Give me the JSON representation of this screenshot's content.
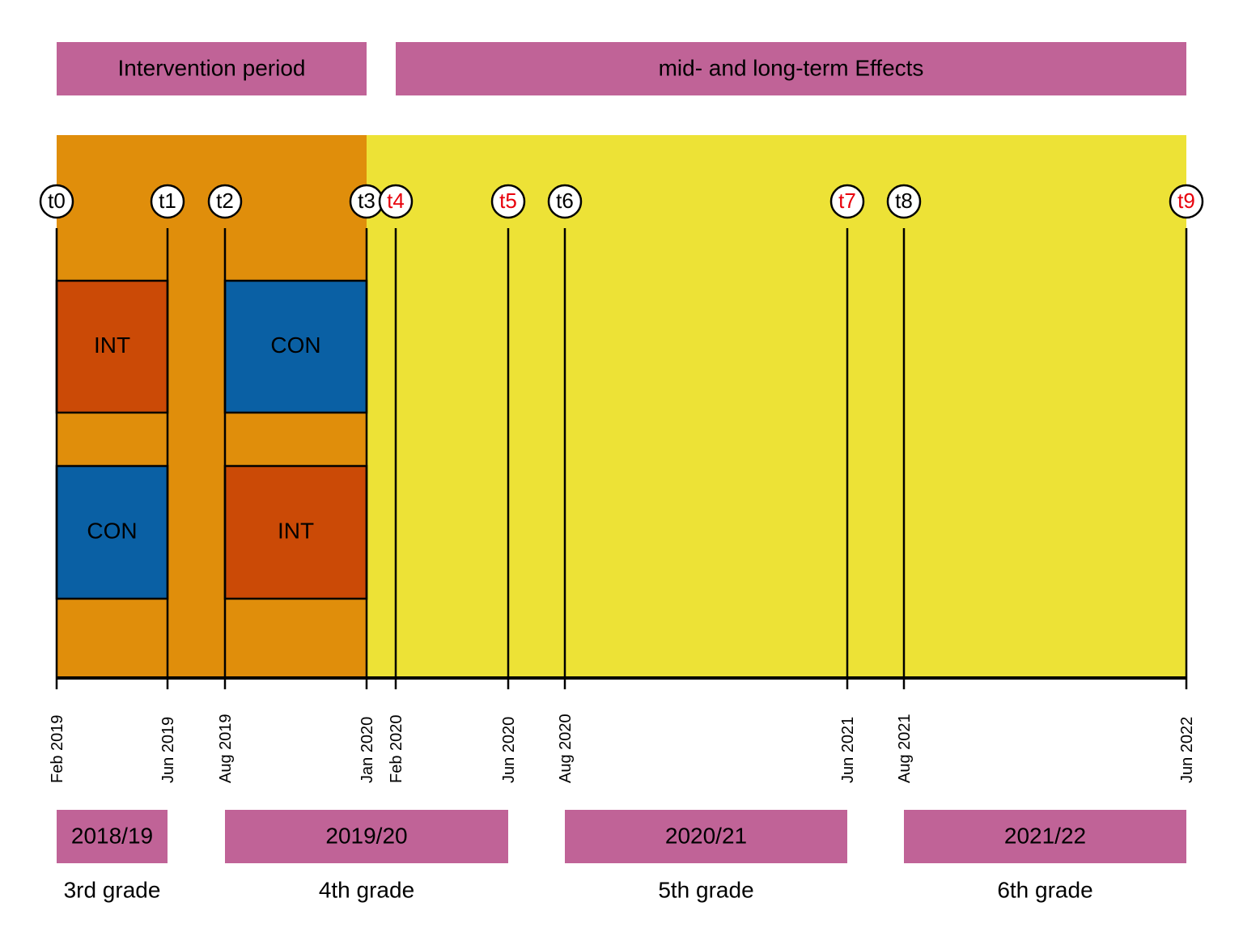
{
  "colors": {
    "period_banner": "#c06397",
    "intervention_bg": "#e08e0b",
    "effects_bg": "#ede236",
    "int_box": "#cb4a06",
    "con_box": "#0a60a4",
    "red_label": "#e8000b",
    "black": "#000000",
    "white": "#ffffff"
  },
  "header": {
    "intervention_period": "Intervention period",
    "effects_period": "mid- and long-term Effects"
  },
  "timepoints": [
    {
      "label": "t0",
      "date": "Feb 2019",
      "red": false
    },
    {
      "label": "t1",
      "date": "Jun 2019",
      "red": false
    },
    {
      "label": "t2",
      "date": "Aug 2019",
      "red": false
    },
    {
      "label": "t3",
      "date": "Jan 2020",
      "red": false
    },
    {
      "label": "t4",
      "date": "Feb 2020",
      "red": true
    },
    {
      "label": "t5",
      "date": "Jun 2020",
      "red": true
    },
    {
      "label": "t6",
      "date": "Aug 2020",
      "red": false
    },
    {
      "label": "t7",
      "date": "Jun 2021",
      "red": true
    },
    {
      "label": "t8",
      "date": "Aug 2021",
      "red": false
    },
    {
      "label": "t9",
      "date": "Jun 2022",
      "red": true
    }
  ],
  "groups": [
    {
      "label": "INT",
      "kind": "int",
      "from": "t0",
      "to": "t1",
      "row": "upper"
    },
    {
      "label": "CON",
      "kind": "con",
      "from": "t0",
      "to": "t1",
      "row": "lower"
    },
    {
      "label": "CON",
      "kind": "con",
      "from": "t2",
      "to": "t3",
      "row": "upper"
    },
    {
      "label": "INT",
      "kind": "int",
      "from": "t2",
      "to": "t3",
      "row": "lower"
    }
  ],
  "school_years": [
    {
      "year": "2018/19",
      "grade": "3rd grade",
      "from": "t0",
      "to": "t1"
    },
    {
      "year": "2019/20",
      "grade": "4th grade",
      "from": "t2",
      "to": "t5"
    },
    {
      "year": "2020/21",
      "grade": "5th grade",
      "from": "t6",
      "to": "t7"
    },
    {
      "year": "2021/22",
      "grade": "6th grade",
      "from": "t8",
      "to": "t9"
    }
  ]
}
